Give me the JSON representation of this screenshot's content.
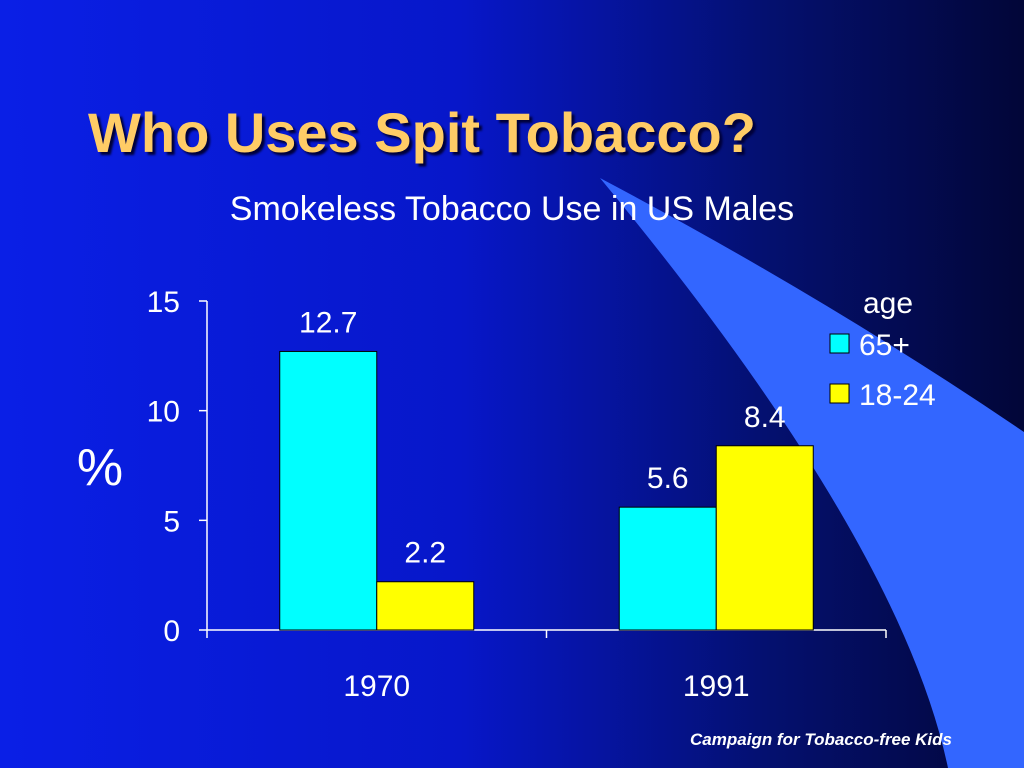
{
  "slide": {
    "title": "Who Uses Spit Tobacco?",
    "footer": "Campaign for Tobacco-free Kids"
  },
  "colors": {
    "title": "#ffcc66",
    "text": "#ffffff",
    "swoosh": "#3366ff"
  },
  "chart_data": {
    "type": "bar",
    "title": "Smokeless Tobacco Use in US Males",
    "xlabel": "",
    "ylabel": "%",
    "ylim": [
      0,
      15
    ],
    "yticks": [
      0,
      5,
      10,
      15
    ],
    "grid": false,
    "categories": [
      "1970",
      "1991"
    ],
    "legend": {
      "title": "age",
      "position": "top-right"
    },
    "series": [
      {
        "name": "65+",
        "color": "#00ffff",
        "values": [
          12.7,
          5.6
        ],
        "labels": [
          "12.7",
          "5.6"
        ]
      },
      {
        "name": "18-24",
        "color": "#ffff00",
        "values": [
          2.2,
          8.4
        ],
        "labels": [
          "2.2",
          "8.4"
        ]
      }
    ]
  }
}
